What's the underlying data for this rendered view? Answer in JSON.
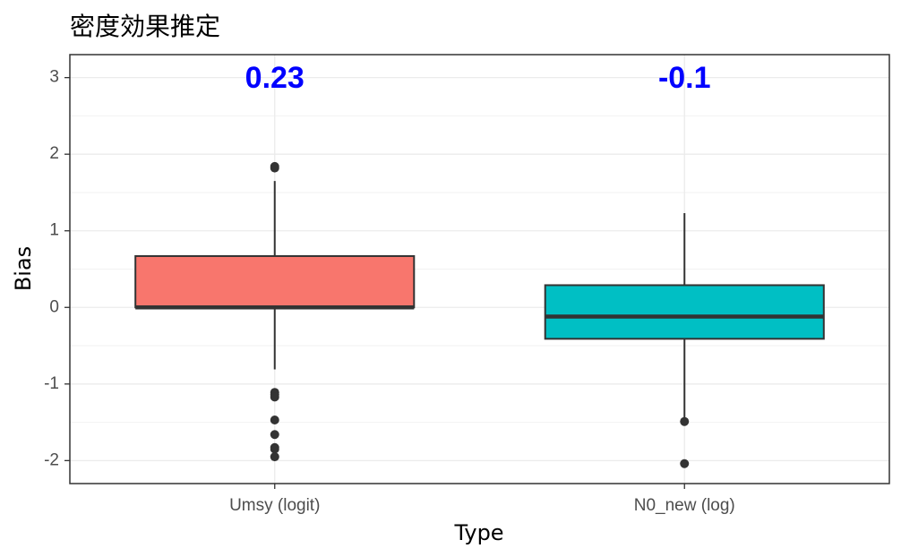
{
  "chart_data": {
    "type": "box",
    "title": "密度効果推定",
    "xlabel": "Type",
    "ylabel": "Bias",
    "ylim": [
      -2.3,
      3.3
    ],
    "y_ticks": [
      -2,
      -1,
      0,
      1,
      2,
      3
    ],
    "grid": true,
    "legend": "none",
    "categories": [
      "Umsy (logit)",
      "N0_new (log)"
    ],
    "series": [
      {
        "category": "Umsy (logit)",
        "fill": "#F8766D",
        "q1": 0.0,
        "median": 0.0,
        "q3": 0.67,
        "whisker_low": -0.81,
        "whisker_high": 1.65,
        "outliers": [
          1.82,
          1.84,
          -1.11,
          -1.14,
          -1.17,
          -1.47,
          -1.66,
          -1.83,
          -1.85,
          -1.95
        ],
        "annotation": "0.23"
      },
      {
        "category": "N0_new (log)",
        "fill": "#00BFC4",
        "q1": -0.41,
        "median": -0.12,
        "q3": 0.29,
        "whisker_low": -1.48,
        "whisker_high": 1.23,
        "outliers": [
          -1.49,
          -2.04
        ],
        "annotation": "-0.1"
      }
    ],
    "annotation_y": 2.97,
    "annotation_color": "#0000FF"
  }
}
